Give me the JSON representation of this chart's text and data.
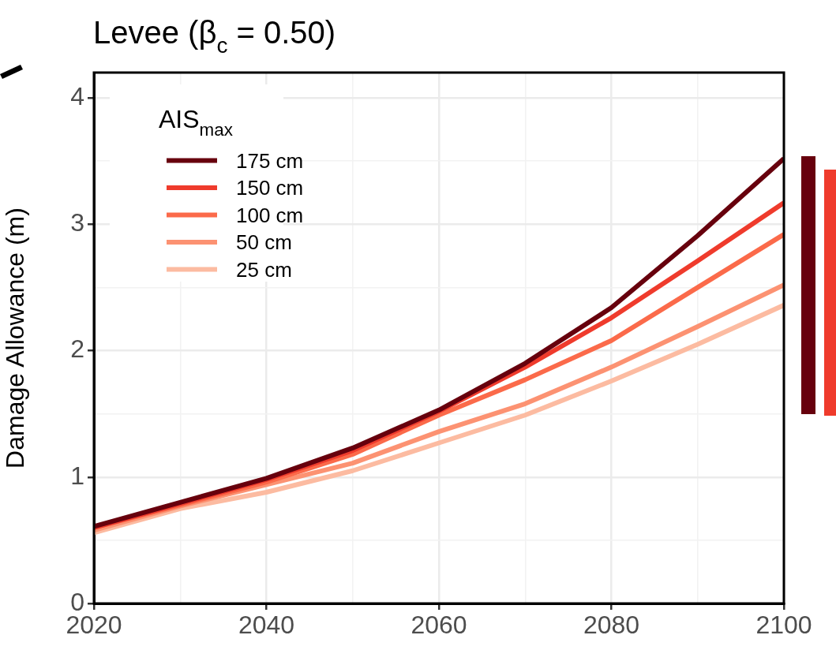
{
  "chart_data": {
    "type": "line",
    "title": "Levee (β$_{c}$ = 0.50)",
    "ylabel": "Damage Allowance (m)",
    "legend_title": "AIS$_{max}$",
    "x": [
      2020,
      2030,
      2040,
      2050,
      2060,
      2070,
      2080,
      2090,
      2100
    ],
    "series": [
      {
        "name": "175 cm",
        "color": "#67000d",
        "values": [
          0.61,
          0.8,
          0.99,
          1.23,
          1.53,
          1.9,
          2.34,
          2.91,
          3.52
        ]
      },
      {
        "name": "150 cm",
        "color": "#ef3b2c",
        "values": [
          0.6,
          0.79,
          0.98,
          1.21,
          1.52,
          1.87,
          2.26,
          2.71,
          3.17
        ]
      },
      {
        "name": "100 cm",
        "color": "#fb6a4a",
        "values": [
          0.6,
          0.78,
          0.96,
          1.18,
          1.49,
          1.77,
          2.08,
          2.5,
          2.92
        ]
      },
      {
        "name": "50 cm",
        "color": "#fc9272",
        "values": [
          0.58,
          0.77,
          0.94,
          1.11,
          1.36,
          1.58,
          1.87,
          2.19,
          2.52
        ]
      },
      {
        "name": "25 cm",
        "color": "#fcbba1",
        "values": [
          0.56,
          0.75,
          0.88,
          1.05,
          1.27,
          1.49,
          1.76,
          2.05,
          2.36
        ]
      }
    ],
    "xlim": [
      2020,
      2100
    ],
    "xticks": [
      2020,
      {
        "value": 2030,
        "label": null
      },
      2040,
      {
        "value": 2050,
        "label": null
      },
      2060,
      {
        "value": 2070,
        "label": null
      },
      2080,
      {
        "value": 2090,
        "label": null
      },
      2100
    ],
    "ylim": [
      0,
      4.2
    ],
    "yticks": [
      0,
      {
        "value": 0.5,
        "label": null
      },
      1,
      {
        "value": 1.5,
        "label": null
      },
      2,
      {
        "value": 2.5,
        "label": null
      },
      3,
      {
        "value": 3.5,
        "label": null
      },
      4
    ],
    "grid": true,
    "legend": "top left",
    "line_style": "solid",
    "marker": "none"
  }
}
